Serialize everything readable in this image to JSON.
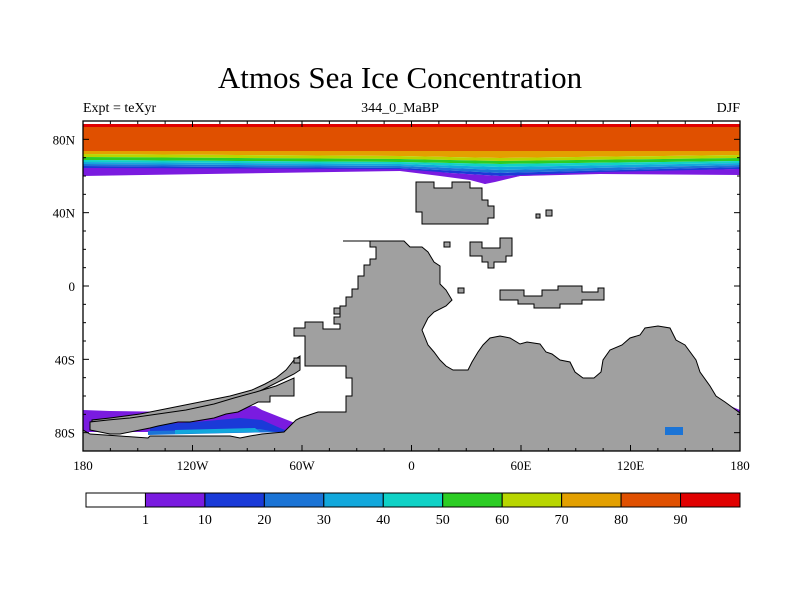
{
  "title": "Atmos Sea Ice Concentration",
  "subtitle_left": "Expt = teXyr",
  "subtitle_center": "344_0_MaBP",
  "subtitle_right": "DJF",
  "axes": {
    "x_ticks": [
      "180",
      "120W",
      "60W",
      "0",
      "60E",
      "120E",
      "180"
    ],
    "y_ticks": [
      "80N",
      "40N",
      "0",
      "40S",
      "80S"
    ],
    "lon_range": [
      -180,
      180
    ],
    "lat_range": [
      -90,
      90
    ]
  },
  "chart_data": {
    "type": "heatmap",
    "title": "Atmos Sea Ice Concentration",
    "variable": "sea ice concentration",
    "color_levels": [
      1,
      10,
      20,
      30,
      40,
      50,
      60,
      70,
      80,
      90
    ],
    "colors": [
      "#ffffff",
      "#7a1be0",
      "#1a3ad8",
      "#1b74d6",
      "#12a8dc",
      "#10d2c6",
      "#2ccd24",
      "#b8d600",
      "#e3a000",
      "#e05000",
      "#e00000"
    ],
    "land_color": "#a0a0a0",
    "x_ticks": [
      "180",
      "120W",
      "60W",
      "0",
      "60E",
      "120E",
      "180"
    ],
    "y_ticks": [
      "80N",
      "40N",
      "0",
      "40S",
      "80S"
    ],
    "xlim": [
      -180,
      180
    ],
    "ylim": [
      -90,
      90
    ]
  }
}
